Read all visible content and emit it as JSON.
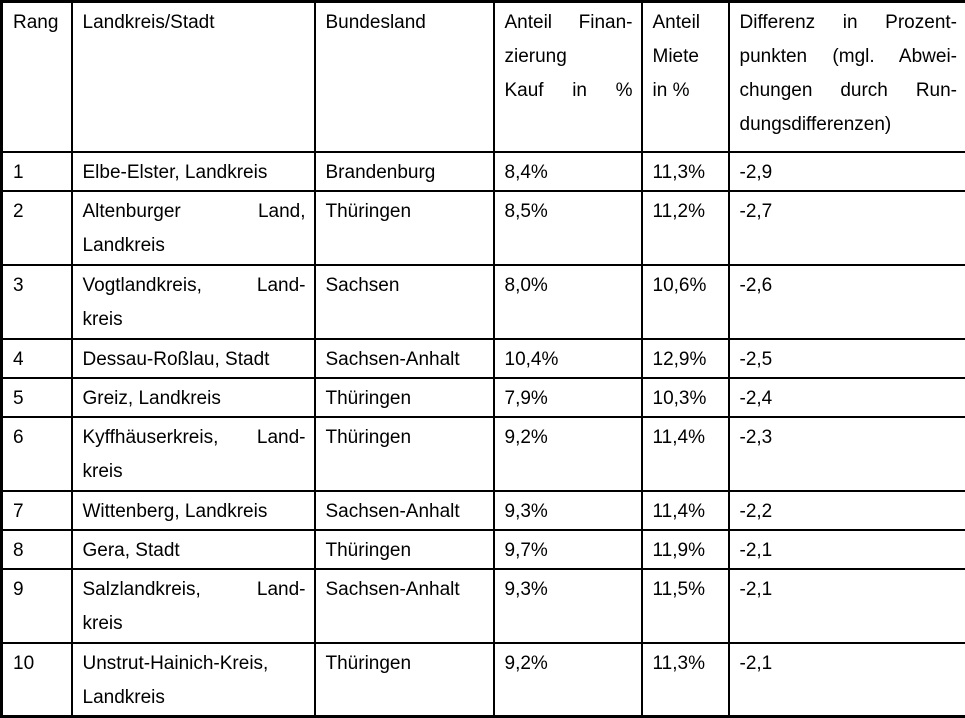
{
  "table": {
    "headers": [
      {
        "id": "rang",
        "lines": [
          {
            "text": "Rang",
            "just": false
          }
        ]
      },
      {
        "id": "landkreis-stadt",
        "lines": [
          {
            "text": "Landkreis/Stadt",
            "just": false
          }
        ]
      },
      {
        "id": "bundesland",
        "lines": [
          {
            "text": "Bundesland",
            "just": false
          }
        ]
      },
      {
        "id": "anteil-finanzierung-kauf",
        "lines": [
          {
            "text": "Anteil Finan-",
            "just": true
          },
          {
            "text": "zierung",
            "just": false
          },
          {
            "text": "Kauf in %",
            "just": true
          }
        ]
      },
      {
        "id": "anteil-miete",
        "lines": [
          {
            "text": "Anteil",
            "just": false
          },
          {
            "text": "Miete",
            "just": false
          },
          {
            "text": "in %",
            "just": false
          }
        ]
      },
      {
        "id": "differenz",
        "lines": [
          {
            "text": "Differenz in Prozent-",
            "just": true
          },
          {
            "text": "punkten (mgl. Abwei-",
            "just": true
          },
          {
            "text": "chungen durch Run-",
            "just": true
          },
          {
            "text": "dungsdifferenzen)",
            "just": false
          }
        ]
      }
    ],
    "rows": [
      {
        "rang": "1",
        "tall": false,
        "landkreis": [
          {
            "text": "Elbe-Elster, Landkreis",
            "just": false
          }
        ],
        "bundesland": "Brandenburg",
        "anteil_kauf": "8,4%",
        "anteil_miete": "11,3%",
        "differenz": "-2,9"
      },
      {
        "rang": "2",
        "tall": true,
        "landkreis": [
          {
            "text": "Altenburger Land,",
            "just": true
          },
          {
            "text": "Landkreis",
            "just": false
          }
        ],
        "bundesland": "Thüringen",
        "anteil_kauf": "8,5%",
        "anteil_miete": "11,2%",
        "differenz": "-2,7"
      },
      {
        "rang": "3",
        "tall": true,
        "landkreis": [
          {
            "text": "Vogtlandkreis, Land-",
            "just": true
          },
          {
            "text": "kreis",
            "just": false
          }
        ],
        "bundesland": "Sachsen",
        "anteil_kauf": "8,0%",
        "anteil_miete": "10,6%",
        "differenz": "-2,6"
      },
      {
        "rang": "4",
        "tall": false,
        "landkreis": [
          {
            "text": "Dessau-Roßlau, Stadt",
            "just": false
          }
        ],
        "bundesland": "Sachsen-Anhalt",
        "anteil_kauf": "10,4%",
        "anteil_miete": "12,9%",
        "differenz": "-2,5"
      },
      {
        "rang": "5",
        "tall": false,
        "landkreis": [
          {
            "text": "Greiz, Landkreis",
            "just": false
          }
        ],
        "bundesland": "Thüringen",
        "anteil_kauf": "7,9%",
        "anteil_miete": "10,3%",
        "differenz": "-2,4"
      },
      {
        "rang": "6",
        "tall": true,
        "landkreis": [
          {
            "text": "Kyffhäuserkreis, Land-",
            "just": true
          },
          {
            "text": "kreis",
            "just": false
          }
        ],
        "bundesland": "Thüringen",
        "anteil_kauf": "9,2%",
        "anteil_miete": "11,4%",
        "differenz": "-2,3"
      },
      {
        "rang": "7",
        "tall": false,
        "landkreis": [
          {
            "text": "Wittenberg, Landkreis",
            "just": false
          }
        ],
        "bundesland": "Sachsen-Anhalt",
        "anteil_kauf": "9,3%",
        "anteil_miete": "11,4%",
        "differenz": "-2,2"
      },
      {
        "rang": "8",
        "tall": false,
        "landkreis": [
          {
            "text": "Gera, Stadt",
            "just": false
          }
        ],
        "bundesland": "Thüringen",
        "anteil_kauf": "9,7%",
        "anteil_miete": "11,9%",
        "differenz": "-2,1"
      },
      {
        "rang": "9",
        "tall": true,
        "landkreis": [
          {
            "text": "Salzlandkreis, Land-",
            "just": true
          },
          {
            "text": "kreis",
            "just": false
          }
        ],
        "bundesland": "Sachsen-Anhalt",
        "anteil_kauf": "9,3%",
        "anteil_miete": "11,5%",
        "differenz": "-2,1"
      },
      {
        "rang": "10",
        "tall": true,
        "landkreis": [
          {
            "text": "Unstrut-Hainich-Kreis,",
            "just": false
          },
          {
            "text": "Landkreis",
            "just": false
          }
        ],
        "bundesland": "Thüringen",
        "anteil_kauf": "9,2%",
        "anteil_miete": "11,3%",
        "differenz": "-2,1"
      }
    ]
  }
}
